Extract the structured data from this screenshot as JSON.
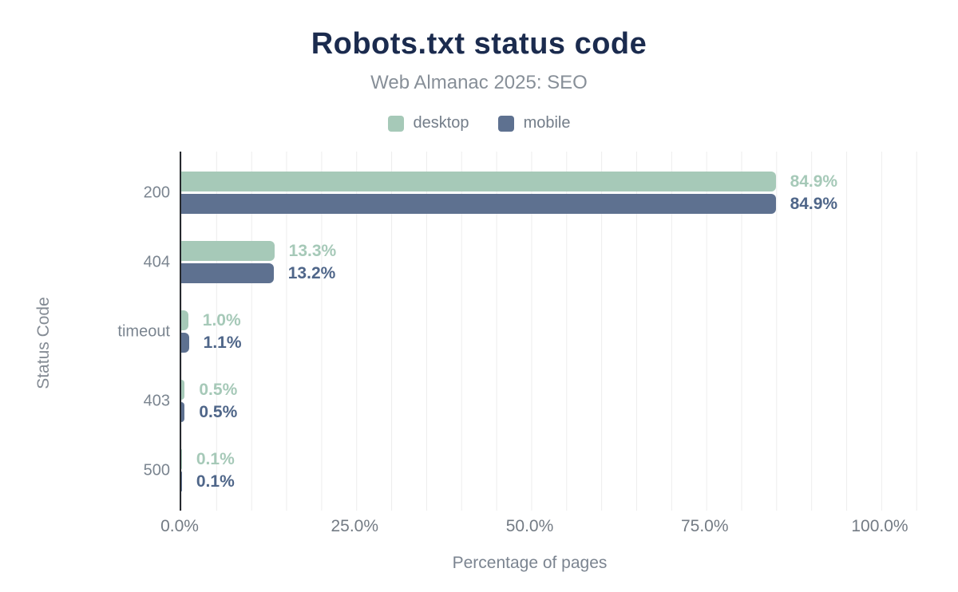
{
  "chart_data": {
    "type": "bar",
    "orientation": "horizontal",
    "title": "Robots.txt status code",
    "subtitle": "Web Almanac 2025: SEO",
    "categories": [
      "200",
      "404",
      "timeout",
      "403",
      "500"
    ],
    "series": [
      {
        "name": "desktop",
        "color": "#a6c9b8",
        "label_color": "#a6c9b8",
        "values": [
          84.9,
          13.3,
          1.0,
          0.5,
          0.1
        ],
        "value_labels": [
          "84.9%",
          "13.3%",
          "1.0%",
          "0.5%",
          "0.1%"
        ]
      },
      {
        "name": "mobile",
        "color": "#5e7190",
        "label_color": "#4f6689",
        "values": [
          84.9,
          13.2,
          1.1,
          0.5,
          0.1
        ],
        "value_labels": [
          "84.9%",
          "13.2%",
          "1.1%",
          "0.5%",
          "0.1%"
        ]
      }
    ],
    "xlabel": "Percentage of pages",
    "ylabel": "Status Code",
    "x_ticks": [
      "0.0%",
      "25.0%",
      "50.0%",
      "75.0%",
      "100.0%"
    ],
    "xlim": [
      0,
      100
    ],
    "grid": {
      "vertical_step_percent": 5
    },
    "legend_position": "top",
    "colors": {
      "title": "#1b2b4e",
      "subtitle": "#878f98",
      "axis_line": "#26292e",
      "gridline": "#ededed",
      "tick_label": "#737b84",
      "category_label": "#7b8590"
    }
  }
}
